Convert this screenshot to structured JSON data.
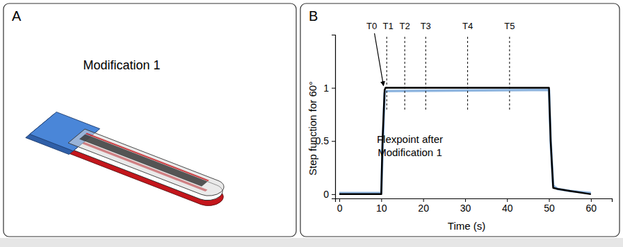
{
  "diagram": {
    "label": "A",
    "title": "Modification 1"
  },
  "chart_data": {
    "type": "line",
    "panel_label": "B",
    "x_label": "Time (s)",
    "y_label": "Step function for 60°",
    "annotation": "Flexpoint after Modification 1",
    "xlim": [
      -1,
      65
    ],
    "xticks": [
      0,
      10,
      20,
      30,
      40,
      50,
      60
    ],
    "ylim": [
      -0.04,
      1.5
    ],
    "yticks": [
      0,
      0.5,
      1
    ],
    "grid": false,
    "x": [
      0,
      10,
      10.3,
      10.8,
      11,
      50,
      50.4,
      51,
      52,
      55,
      60
    ],
    "series": [
      {
        "color": "#8fb6e0",
        "values": [
          0.01,
          0.01,
          0.4,
          0.95,
          0.97,
          0.98,
          0.5,
          0.08,
          0.05,
          0.03,
          0.01
        ]
      },
      {
        "color": "#000000",
        "values": [
          0,
          0,
          0.5,
          0.98,
          1,
          1,
          0.5,
          0.06,
          0.05,
          0.03,
          0
        ]
      }
    ],
    "arrow_marker": {
      "label": "T0",
      "x": 10.7,
      "y": 1
    },
    "time_markers": [
      {
        "label": "T1",
        "x": 11.3
      },
      {
        "label": "T2",
        "x": 15.6
      },
      {
        "label": "T3",
        "x": 20.6
      },
      {
        "label": "T4",
        "x": 30.6
      },
      {
        "label": "T5",
        "x": 40.6
      }
    ]
  }
}
